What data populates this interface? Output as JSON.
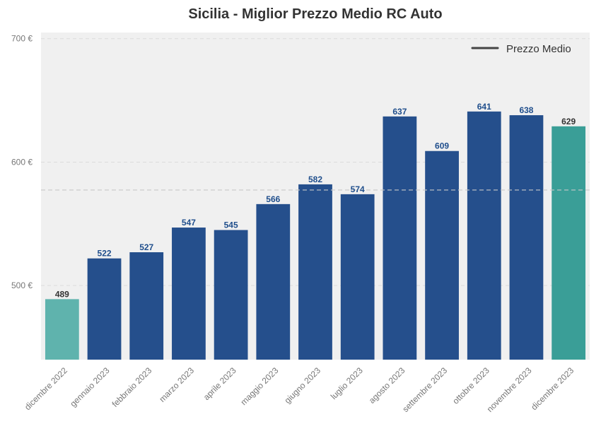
{
  "chart_data": {
    "type": "bar",
    "title": "Sicilia - Miglior Prezzo Medio RC Auto",
    "xlabel": "",
    "ylabel": "",
    "categories": [
      "dicembre 2022",
      "gennaio 2023",
      "febbraio 2023",
      "marzo 2023",
      "aprile 2023",
      "maggio 2023",
      "giugno 2023",
      "luglio 2023",
      "agosto 2023",
      "settembre 2023",
      "ottobre 2023",
      "novembre 2023",
      "dicembre 2023"
    ],
    "values": [
      489,
      522,
      527,
      547,
      545,
      566,
      582,
      574,
      637,
      609,
      641,
      638,
      629
    ],
    "value_labels": [
      "489",
      "522",
      "527",
      "547",
      "545",
      "566",
      "582",
      "574",
      "637",
      "609",
      "641",
      "638",
      "629"
    ],
    "bar_colors": [
      "#5fb3ad",
      "#254f8c",
      "#254f8c",
      "#254f8c",
      "#254f8c",
      "#254f8c",
      "#254f8c",
      "#254f8c",
      "#254f8c",
      "#254f8c",
      "#254f8c",
      "#254f8c",
      "#3a9e97"
    ],
    "label_colors": [
      "#333333",
      "#1f4e8c",
      "#1f4e8c",
      "#1f4e8c",
      "#1f4e8c",
      "#1f4e8c",
      "#1f4e8c",
      "#1f4e8c",
      "#1f4e8c",
      "#1f4e8c",
      "#1f4e8c",
      "#1f4e8c",
      "#333333"
    ],
    "ylim": [
      440,
      705
    ],
    "yticks": [
      500,
      600,
      700
    ],
    "ytick_labels": [
      "500 €",
      "600 €",
      "700 €"
    ],
    "reference_line": {
      "name": "Prezzo Medio",
      "value": 577.4,
      "style": "dashed"
    },
    "legend": {
      "placement": "top-right",
      "entries": [
        "Prezzo Medio"
      ]
    },
    "grid": true,
    "background": "#f0f0f0"
  }
}
